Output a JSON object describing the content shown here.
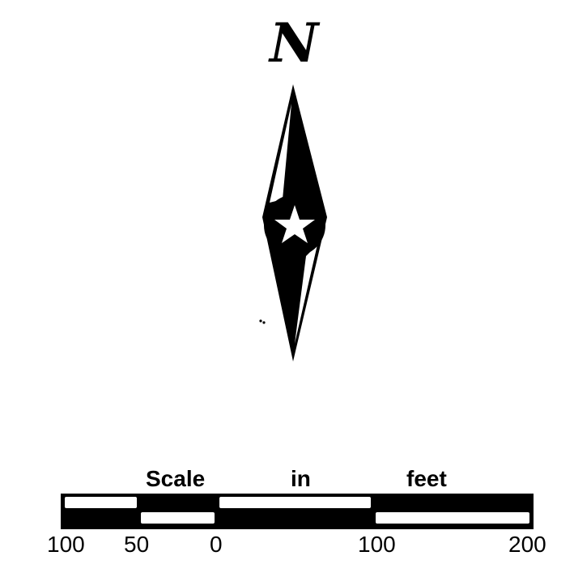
{
  "north_arrow": {
    "letter": "N",
    "icon": "compass-rose-star-icon"
  },
  "scale": {
    "title_words": [
      "Scale",
      "in",
      "feet"
    ],
    "ticks": [
      "100",
      "50",
      "0",
      "100",
      "200"
    ]
  },
  "colors": {
    "ink": "#000000",
    "paper": "#ffffff"
  }
}
